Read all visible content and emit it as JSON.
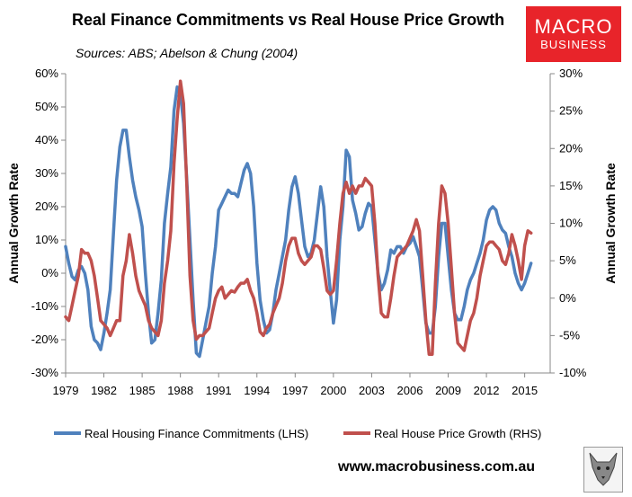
{
  "header": {
    "title": "Real Finance Commitments vs Real House Price Growth",
    "subtitle": "Sources: ABS; Abelson & Chung (2004)"
  },
  "logo": {
    "line1": "MACRO",
    "line2": "BUSINESS",
    "color": "#e8242a"
  },
  "footer": {
    "url": "www.macrobusiness.com.au"
  },
  "chart_data": {
    "type": "line",
    "title": "Real Finance Commitments vs Real House Price Growth",
    "subtitle": "Sources: ABS; Abelson & Chung (2004)",
    "ylabel_left": "Annual Growth Rate",
    "ylabel_right": "Annual Growth Rate",
    "x_ticks": [
      "1979",
      "1982",
      "1985",
      "1988",
      "1991",
      "1994",
      "1997",
      "2000",
      "2003",
      "2006",
      "2009",
      "2012",
      "2015"
    ],
    "xlim": [
      1979.0,
      2017.0
    ],
    "ylim_left": [
      -30,
      60
    ],
    "ylim_right": [
      -10,
      30
    ],
    "y_ticks_left": [
      "60%",
      "50%",
      "40%",
      "30%",
      "20%",
      "10%",
      "0%",
      "-10%",
      "-20%",
      "-30%"
    ],
    "y_ticks_right": [
      "30%",
      "25%",
      "20%",
      "15%",
      "10%",
      "5%",
      "0%",
      "-5%",
      "-10%"
    ],
    "grid": false,
    "legend_position": "bottom",
    "series": [
      {
        "name": "Real Housing Finance Commitments (LHS)",
        "axis": "left",
        "color": "#4f81bd",
        "points": [
          [
            1979.0,
            8
          ],
          [
            1979.25,
            3
          ],
          [
            1979.5,
            -1
          ],
          [
            1979.75,
            -2
          ],
          [
            1980.0,
            1
          ],
          [
            1980.25,
            2
          ],
          [
            1980.5,
            0
          ],
          [
            1980.75,
            -5
          ],
          [
            1981.0,
            -16
          ],
          [
            1981.25,
            -20
          ],
          [
            1981.5,
            -21
          ],
          [
            1981.75,
            -23
          ],
          [
            1982.0,
            -18
          ],
          [
            1982.25,
            -12
          ],
          [
            1982.5,
            -5
          ],
          [
            1982.75,
            12
          ],
          [
            1983.0,
            28
          ],
          [
            1983.25,
            38
          ],
          [
            1983.5,
            43
          ],
          [
            1983.75,
            43
          ],
          [
            1984.0,
            35
          ],
          [
            1984.25,
            28
          ],
          [
            1984.5,
            23
          ],
          [
            1984.75,
            19
          ],
          [
            1985.0,
            14
          ],
          [
            1985.25,
            0
          ],
          [
            1985.5,
            -12
          ],
          [
            1985.75,
            -21
          ],
          [
            1986.0,
            -20
          ],
          [
            1986.25,
            -12
          ],
          [
            1986.5,
            -2
          ],
          [
            1986.75,
            15
          ],
          [
            1987.0,
            24
          ],
          [
            1987.25,
            32
          ],
          [
            1987.5,
            49
          ],
          [
            1987.75,
            56
          ],
          [
            1988.0,
            54
          ],
          [
            1988.25,
            45
          ],
          [
            1988.5,
            28
          ],
          [
            1988.75,
            10
          ],
          [
            1989.0,
            -8
          ],
          [
            1989.25,
            -24
          ],
          [
            1989.5,
            -25
          ],
          [
            1989.75,
            -20
          ],
          [
            1990.0,
            -15
          ],
          [
            1990.25,
            -10
          ],
          [
            1990.5,
            0
          ],
          [
            1990.75,
            8
          ],
          [
            1991.0,
            19
          ],
          [
            1991.25,
            21
          ],
          [
            1991.5,
            23
          ],
          [
            1991.75,
            25
          ],
          [
            1992.0,
            24
          ],
          [
            1992.25,
            24
          ],
          [
            1992.5,
            23
          ],
          [
            1992.75,
            27
          ],
          [
            1993.0,
            31
          ],
          [
            1993.25,
            33
          ],
          [
            1993.5,
            30
          ],
          [
            1993.75,
            20
          ],
          [
            1994.0,
            3
          ],
          [
            1994.25,
            -8
          ],
          [
            1994.5,
            -14
          ],
          [
            1994.75,
            -18
          ],
          [
            1995.0,
            -17
          ],
          [
            1995.25,
            -12
          ],
          [
            1995.5,
            -5
          ],
          [
            1995.75,
            0
          ],
          [
            1996.0,
            5
          ],
          [
            1996.25,
            10
          ],
          [
            1996.5,
            19
          ],
          [
            1996.75,
            26
          ],
          [
            1997.0,
            29
          ],
          [
            1997.25,
            24
          ],
          [
            1997.5,
            16
          ],
          [
            1997.75,
            8
          ],
          [
            1998.0,
            5
          ],
          [
            1998.25,
            6
          ],
          [
            1998.5,
            10
          ],
          [
            1998.75,
            18
          ],
          [
            1999.0,
            26
          ],
          [
            1999.25,
            20
          ],
          [
            1999.5,
            5
          ],
          [
            1999.75,
            -5
          ],
          [
            2000.0,
            -15
          ],
          [
            2000.25,
            -8
          ],
          [
            2000.5,
            10
          ],
          [
            2000.75,
            20
          ],
          [
            2001.0,
            37
          ],
          [
            2001.25,
            35
          ],
          [
            2001.5,
            22
          ],
          [
            2001.75,
            18
          ],
          [
            2002.0,
            13
          ],
          [
            2002.25,
            14
          ],
          [
            2002.5,
            18
          ],
          [
            2002.75,
            21
          ],
          [
            2003.0,
            20
          ],
          [
            2003.25,
            10
          ],
          [
            2003.5,
            0
          ],
          [
            2003.75,
            -5
          ],
          [
            2004.0,
            -3
          ],
          [
            2004.25,
            1
          ],
          [
            2004.5,
            7
          ],
          [
            2004.75,
            6
          ],
          [
            2005.0,
            8
          ],
          [
            2005.25,
            8
          ],
          [
            2005.5,
            6
          ],
          [
            2005.75,
            8
          ],
          [
            2006.0,
            9
          ],
          [
            2006.25,
            11
          ],
          [
            2006.5,
            8
          ],
          [
            2006.75,
            5
          ],
          [
            2007.0,
            -5
          ],
          [
            2007.25,
            -15
          ],
          [
            2007.5,
            -18
          ],
          [
            2007.75,
            -18
          ],
          [
            2008.0,
            -10
          ],
          [
            2008.25,
            5
          ],
          [
            2008.5,
            15
          ],
          [
            2008.75,
            15
          ],
          [
            2009.0,
            5
          ],
          [
            2009.25,
            -5
          ],
          [
            2009.5,
            -12
          ],
          [
            2009.75,
            -14
          ],
          [
            2010.0,
            -14
          ],
          [
            2010.25,
            -10
          ],
          [
            2010.5,
            -5
          ],
          [
            2010.75,
            -2
          ],
          [
            2011.0,
            0
          ],
          [
            2011.25,
            3
          ],
          [
            2011.5,
            6
          ],
          [
            2011.75,
            10
          ],
          [
            2012.0,
            16
          ],
          [
            2012.25,
            19
          ],
          [
            2012.5,
            20
          ],
          [
            2012.75,
            19
          ],
          [
            2013.0,
            15
          ],
          [
            2013.25,
            13
          ],
          [
            2013.5,
            12
          ],
          [
            2013.75,
            8
          ],
          [
            2014.0,
            5
          ],
          [
            2014.25,
            0
          ],
          [
            2014.5,
            -3
          ],
          [
            2014.75,
            -5
          ],
          [
            2015.0,
            -3
          ],
          [
            2015.25,
            0
          ],
          [
            2015.5,
            3
          ]
        ]
      },
      {
        "name": "Real House Price Growth (RHS)",
        "axis": "right",
        "color": "#c0504d",
        "points": [
          [
            1979.0,
            -2.5
          ],
          [
            1979.25,
            -3
          ],
          [
            1979.5,
            -1
          ],
          [
            1979.75,
            1
          ],
          [
            1980.0,
            3
          ],
          [
            1980.25,
            6.5
          ],
          [
            1980.5,
            6
          ],
          [
            1980.75,
            6
          ],
          [
            1981.0,
            5
          ],
          [
            1981.25,
            3
          ],
          [
            1981.5,
            0
          ],
          [
            1981.75,
            -3
          ],
          [
            1982.0,
            -3.5
          ],
          [
            1982.25,
            -4
          ],
          [
            1982.5,
            -5
          ],
          [
            1982.75,
            -4
          ],
          [
            1983.0,
            -3
          ],
          [
            1983.25,
            -3
          ],
          [
            1983.5,
            3
          ],
          [
            1983.75,
            5
          ],
          [
            1984.0,
            8.5
          ],
          [
            1984.25,
            6
          ],
          [
            1984.5,
            3
          ],
          [
            1984.75,
            1
          ],
          [
            1985.0,
            0
          ],
          [
            1985.25,
            -1
          ],
          [
            1985.5,
            -3
          ],
          [
            1985.75,
            -4
          ],
          [
            1986.0,
            -4.5
          ],
          [
            1986.25,
            -5
          ],
          [
            1986.5,
            -3
          ],
          [
            1986.75,
            2
          ],
          [
            1987.0,
            5
          ],
          [
            1987.25,
            9
          ],
          [
            1987.5,
            18
          ],
          [
            1987.75,
            24
          ],
          [
            1988.0,
            29
          ],
          [
            1988.25,
            26
          ],
          [
            1988.5,
            15
          ],
          [
            1988.75,
            3
          ],
          [
            1989.0,
            -3
          ],
          [
            1989.25,
            -5.5
          ],
          [
            1989.5,
            -5
          ],
          [
            1989.75,
            -5
          ],
          [
            1990.0,
            -4.5
          ],
          [
            1990.25,
            -4
          ],
          [
            1990.5,
            -2
          ],
          [
            1990.75,
            0
          ],
          [
            1991.0,
            1
          ],
          [
            1991.25,
            1.5
          ],
          [
            1991.5,
            0
          ],
          [
            1991.75,
            0.5
          ],
          [
            1992.0,
            1
          ],
          [
            1992.25,
            0.8
          ],
          [
            1992.5,
            1.5
          ],
          [
            1992.75,
            2
          ],
          [
            1993.0,
            2
          ],
          [
            1993.25,
            2.5
          ],
          [
            1993.5,
            1
          ],
          [
            1993.75,
            0
          ],
          [
            1994.0,
            -2
          ],
          [
            1994.25,
            -4.5
          ],
          [
            1994.5,
            -5
          ],
          [
            1994.75,
            -4
          ],
          [
            1995.0,
            -3.5
          ],
          [
            1995.25,
            -2
          ],
          [
            1995.5,
            -1
          ],
          [
            1995.75,
            0
          ],
          [
            1996.0,
            2
          ],
          [
            1996.25,
            5
          ],
          [
            1996.5,
            7
          ],
          [
            1996.75,
            8
          ],
          [
            1997.0,
            8
          ],
          [
            1997.25,
            6
          ],
          [
            1997.5,
            5
          ],
          [
            1997.75,
            4.5
          ],
          [
            1998.0,
            5
          ],
          [
            1998.25,
            5.5
          ],
          [
            1998.5,
            7
          ],
          [
            1998.75,
            7
          ],
          [
            1999.0,
            6.5
          ],
          [
            1999.25,
            4
          ],
          [
            1999.5,
            1
          ],
          [
            1999.75,
            0.5
          ],
          [
            2000.0,
            1
          ],
          [
            2000.25,
            5
          ],
          [
            2000.5,
            10
          ],
          [
            2000.75,
            14
          ],
          [
            2001.0,
            15.5
          ],
          [
            2001.25,
            14
          ],
          [
            2001.5,
            15
          ],
          [
            2001.75,
            14
          ],
          [
            2002.0,
            15
          ],
          [
            2002.25,
            15
          ],
          [
            2002.5,
            16
          ],
          [
            2002.75,
            15.5
          ],
          [
            2003.0,
            15
          ],
          [
            2003.25,
            10
          ],
          [
            2003.5,
            3
          ],
          [
            2003.75,
            -2
          ],
          [
            2004.0,
            -2.5
          ],
          [
            2004.25,
            -2.5
          ],
          [
            2004.5,
            0
          ],
          [
            2004.75,
            3
          ],
          [
            2005.0,
            5.5
          ],
          [
            2005.25,
            6
          ],
          [
            2005.5,
            6.5
          ],
          [
            2005.75,
            7
          ],
          [
            2006.0,
            8
          ],
          [
            2006.25,
            9
          ],
          [
            2006.5,
            10.5
          ],
          [
            2006.75,
            9
          ],
          [
            2007.0,
            3
          ],
          [
            2007.25,
            -3
          ],
          [
            2007.5,
            -7.5
          ],
          [
            2007.75,
            -7.5
          ],
          [
            2008.0,
            2
          ],
          [
            2008.25,
            10
          ],
          [
            2008.5,
            15
          ],
          [
            2008.75,
            14
          ],
          [
            2009.0,
            10
          ],
          [
            2009.25,
            4
          ],
          [
            2009.5,
            -2
          ],
          [
            2009.75,
            -6
          ],
          [
            2010.0,
            -6.5
          ],
          [
            2010.25,
            -7
          ],
          [
            2010.5,
            -5
          ],
          [
            2010.75,
            -3
          ],
          [
            2011.0,
            -2
          ],
          [
            2011.25,
            0
          ],
          [
            2011.5,
            3
          ],
          [
            2011.75,
            5
          ],
          [
            2012.0,
            7
          ],
          [
            2012.25,
            7.5
          ],
          [
            2012.5,
            7.5
          ],
          [
            2012.75,
            7
          ],
          [
            2013.0,
            6.5
          ],
          [
            2013.25,
            5
          ],
          [
            2013.5,
            4.5
          ],
          [
            2013.75,
            6
          ],
          [
            2014.0,
            8.5
          ],
          [
            2014.25,
            7
          ],
          [
            2014.5,
            5
          ],
          [
            2014.75,
            2.5
          ],
          [
            2015.0,
            7
          ],
          [
            2015.25,
            9
          ],
          [
            2015.5,
            8.7
          ]
        ]
      }
    ]
  }
}
